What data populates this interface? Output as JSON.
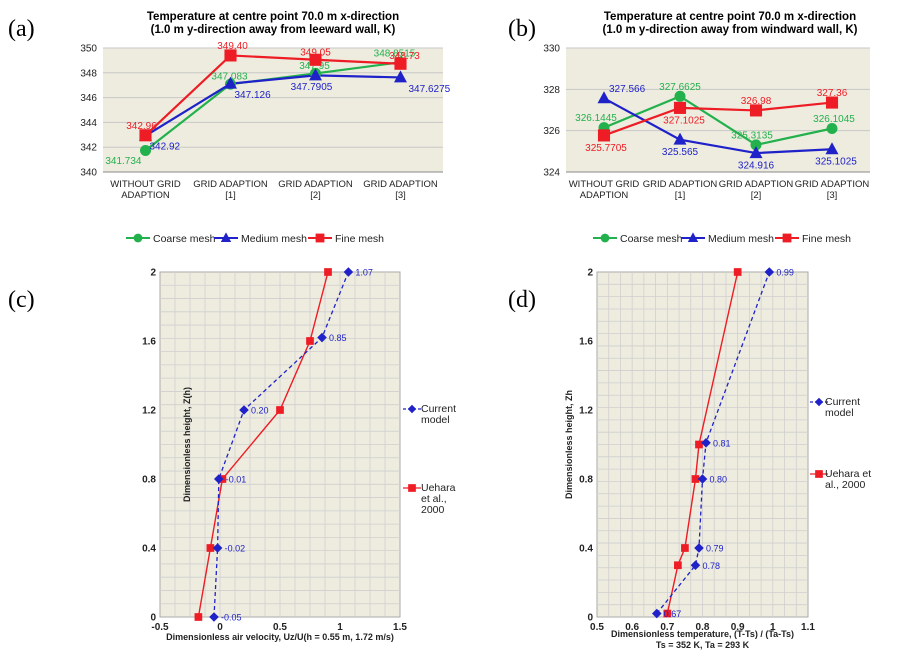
{
  "panels": {
    "a": "(a)",
    "b": "(b)",
    "c": "(c)",
    "d": "(d)"
  },
  "chart_data": [
    {
      "id": "a",
      "type": "line",
      "title": "Temperature at centre point 70.0 m x-direction",
      "subtitle": "(1.0 m y-direction away from leeward wall, K)",
      "categories": [
        [
          "WITHOUT GRID",
          "ADAPTION"
        ],
        [
          "GRID ADAPTION",
          "[1]"
        ],
        [
          "GRID ADAPTION",
          "[2]"
        ],
        [
          "GRID ADAPTION",
          "[3]"
        ]
      ],
      "ylim": [
        340,
        350
      ],
      "yticks": [
        "340",
        "342",
        "344",
        "346",
        "348",
        "350"
      ],
      "grid": true,
      "legend_position": "bottom",
      "series": [
        {
          "name": "Coarse mesh",
          "color": "#22b14c",
          "marker": "circle",
          "values": [
            341.734,
            347.083,
            347.95,
            348.8515
          ],
          "labels": [
            "341.734",
            "347.083",
            "347.95",
            "348.8515"
          ]
        },
        {
          "name": "Medium mesh",
          "color": "#1f22c8",
          "marker": "triangle",
          "values": [
            342.92,
            347.126,
            347.7905,
            347.6275
          ],
          "labels": [
            "342.92",
            "347.126",
            "347.7905",
            "347.6275"
          ]
        },
        {
          "name": "Fine mesh",
          "color": "#ee1c24",
          "marker": "square",
          "values": [
            342.96,
            349.4,
            349.05,
            348.73
          ],
          "labels": [
            "342.96",
            "349.40",
            "349.05",
            "348.73"
          ]
        }
      ]
    },
    {
      "id": "b",
      "type": "line",
      "title": "Temperature at centre point 70.0 m x-direction",
      "subtitle": "(1.0 m y-direction away from windward wall, K)",
      "categories": [
        [
          "WITHOUT GRID",
          "ADAPTION"
        ],
        [
          "GRID ADAPTION",
          "[1]"
        ],
        [
          "GRID ADAPTION",
          "[2]"
        ],
        [
          "GRID ADAPTION",
          "[3]"
        ]
      ],
      "ylim": [
        324,
        330
      ],
      "yticks": [
        "324",
        "326",
        "328",
        "330"
      ],
      "grid": true,
      "legend_position": "bottom",
      "series": [
        {
          "name": "Coarse mesh",
          "color": "#22b14c",
          "marker": "circle",
          "values": [
            326.1445,
            327.6625,
            325.3135,
            326.1045
          ],
          "labels": [
            "326.1445",
            "327.6625",
            "325.3135",
            "326.1045"
          ]
        },
        {
          "name": "Medium mesh",
          "color": "#1f22c8",
          "marker": "triangle",
          "values": [
            327.566,
            325.565,
            324.916,
            325.1025
          ],
          "labels": [
            "327.566",
            "325.565",
            "324.916",
            "325.1025"
          ]
        },
        {
          "name": "Fine mesh",
          "color": "#ee1c24",
          "marker": "square",
          "values": [
            325.7705,
            327.1025,
            326.98,
            327.36
          ],
          "labels": [
            "325.7705",
            "327.1025",
            "326.98",
            "327.36"
          ]
        }
      ]
    },
    {
      "id": "c",
      "type": "line",
      "xlabel": "Dimensionless air velocity, Uz/U(h = 0.55 m, 1.72 m/s)",
      "ylabel": "Dimensionless height, Z(h)",
      "xlim": [
        -0.5,
        1.5
      ],
      "ylim": [
        0,
        2
      ],
      "xticks": [
        "-0.5",
        "0",
        "0.5",
        "1",
        "1.5"
      ],
      "yticks": [
        {
          "v": 0,
          "t": "0"
        },
        {
          "v": 0.4,
          "t": "0.4"
        },
        {
          "v": 0.8,
          "t": "0.8"
        },
        {
          "v": 1.2,
          "t": "1.2"
        },
        {
          "v": 1.6,
          "t": "1.6"
        },
        {
          "v": 2,
          "t": "2"
        }
      ],
      "grid": true,
      "legend_position": "right",
      "series": [
        {
          "name": "Current model",
          "legend": [
            "Current",
            "model"
          ],
          "color": "#1f22c8",
          "marker": "diamond",
          "dash": true,
          "points": [
            [
              -0.05,
              0
            ],
            [
              -0.02,
              0.4
            ],
            [
              -0.01,
              0.8
            ],
            [
              0.2,
              1.2
            ],
            [
              0.85,
              1.62
            ],
            [
              1.07,
              2
            ]
          ],
          "labels": [
            "-0.05",
            "-0.02",
            "-0.01",
            "0.20",
            "0.85",
            "1.07"
          ]
        },
        {
          "name": "Uehara et al., 2000",
          "legend": [
            "Uehara",
            "et al.,",
            "2000"
          ],
          "color": "#ee1c24",
          "marker": "square",
          "dash": false,
          "points": [
            [
              -0.18,
              0
            ],
            [
              -0.08,
              0.4
            ],
            [
              0.02,
              0.8
            ],
            [
              0.5,
              1.2
            ],
            [
              0.75,
              1.6
            ],
            [
              0.9,
              2
            ]
          ]
        }
      ]
    },
    {
      "id": "d",
      "type": "line",
      "xlabel": "Dimensionless temperature, (T-Ts) / (Ta-Ts)",
      "xlabel2": "Ts = 352 K, Ta = 293 K",
      "ylabel": "Dimensionless height, Zh",
      "xlim": [
        0.5,
        1.1
      ],
      "ylim": [
        0,
        2
      ],
      "xticks": [
        "0.5",
        "0.6",
        "0.7",
        "0.8",
        "0.9",
        "1",
        "1.1"
      ],
      "yticks": [
        {
          "v": 0,
          "t": "0"
        },
        {
          "v": 0.4,
          "t": "0.4"
        },
        {
          "v": 0.8,
          "t": "0.8"
        },
        {
          "v": 1.2,
          "t": "1.2"
        },
        {
          "v": 1.6,
          "t": "1.6"
        },
        {
          "v": 2,
          "t": "2"
        }
      ],
      "grid": true,
      "legend_position": "right",
      "series": [
        {
          "name": "Current model",
          "legend": [
            "Current",
            "model"
          ],
          "color": "#1f22c8",
          "marker": "diamond",
          "dash": true,
          "points": [
            [
              0.67,
              0.02
            ],
            [
              0.78,
              0.3
            ],
            [
              0.79,
              0.4
            ],
            [
              0.8,
              0.8
            ],
            [
              0.81,
              1.01
            ],
            [
              0.99,
              2
            ]
          ],
          "labels": [
            "0.67",
            "0.78",
            "0.79",
            "0.80",
            "0.81",
            "0.99"
          ]
        },
        {
          "name": "Uehara et al., 2000",
          "legend": [
            "Uehara et",
            "al., 2000"
          ],
          "color": "#ee1c24",
          "marker": "square",
          "dash": false,
          "points": [
            [
              0.7,
              0.02
            ],
            [
              0.73,
              0.3
            ],
            [
              0.75,
              0.4
            ],
            [
              0.78,
              0.8
            ],
            [
              0.79,
              1.0
            ],
            [
              0.9,
              2
            ]
          ]
        }
      ]
    }
  ]
}
